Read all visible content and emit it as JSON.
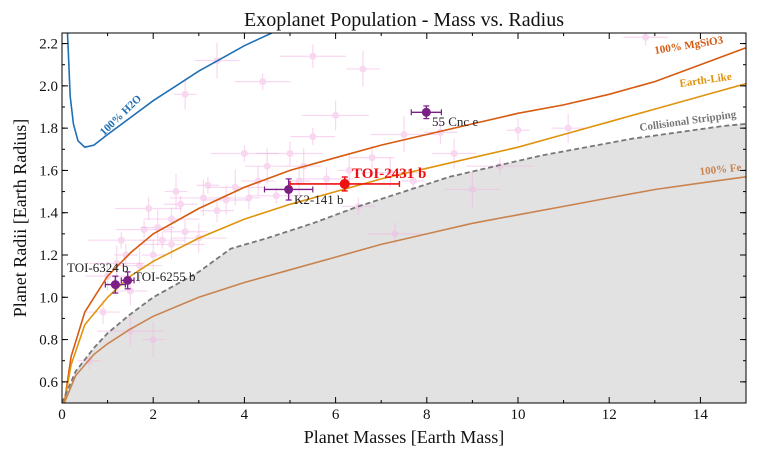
{
  "chart_data": {
    "type": "scatter",
    "title": "Exoplanet Population - Mass vs. Radius",
    "xlabel": "Planet Masses [Earth Mass]",
    "ylabel": "Planet Radii [Earth Radius]",
    "xlim": [
      0,
      15
    ],
    "ylim": [
      0.5,
      2.25
    ],
    "xticks": [
      0,
      2,
      4,
      6,
      8,
      10,
      12,
      14
    ],
    "yticks": [
      0.6,
      0.8,
      1.0,
      1.2,
      1.4,
      1.6,
      1.8,
      2.0,
      2.2
    ],
    "grid": false,
    "colors": {
      "background_population": "#f4b8e4",
      "highlight_planets": "#7a1f86",
      "toi2431": "#ee1111",
      "water": "#1f6fb4",
      "mgsio3": "#d65a10",
      "earth_like": "#e0930c",
      "iron": "#c9834f",
      "stripping": "#777777",
      "shading": "#e2e2e2"
    },
    "curves": [
      {
        "label": "100% H2O",
        "color": "#1f6fb4",
        "points": [
          [
            0.12,
            2.25
          ],
          [
            0.18,
            1.95
          ],
          [
            0.25,
            1.82
          ],
          [
            0.35,
            1.74
          ],
          [
            0.5,
            1.71
          ],
          [
            0.7,
            1.72
          ],
          [
            1.0,
            1.77
          ],
          [
            1.5,
            1.85
          ],
          [
            2.0,
            1.93
          ],
          [
            2.5,
            2.0
          ],
          [
            3.0,
            2.07
          ],
          [
            3.5,
            2.13
          ],
          [
            4.0,
            2.19
          ],
          [
            4.3,
            2.22
          ],
          [
            4.6,
            2.25
          ]
        ]
      },
      {
        "label": "100% MgSiO3",
        "color": "#d65a10",
        "points": [
          [
            0.05,
            0.5
          ],
          [
            0.2,
            0.72
          ],
          [
            0.5,
            0.93
          ],
          [
            1.0,
            1.1
          ],
          [
            1.5,
            1.21
          ],
          [
            2.0,
            1.3
          ],
          [
            3.0,
            1.42
          ],
          [
            4.0,
            1.52
          ],
          [
            5.0,
            1.6
          ],
          [
            6.0,
            1.66
          ],
          [
            7.0,
            1.72
          ],
          [
            8.0,
            1.77
          ],
          [
            9.0,
            1.82
          ],
          [
            10.0,
            1.87
          ],
          [
            11.0,
            1.91
          ],
          [
            12.0,
            1.96
          ],
          [
            13.0,
            2.02
          ],
          [
            14.0,
            2.1
          ],
          [
            15.0,
            2.18
          ]
        ]
      },
      {
        "label": "Earth-Like",
        "color": "#e0930c",
        "points": [
          [
            0.05,
            0.5
          ],
          [
            0.2,
            0.68
          ],
          [
            0.5,
            0.87
          ],
          [
            1.0,
            1.0
          ],
          [
            1.5,
            1.1
          ],
          [
            2.0,
            1.17
          ],
          [
            3.0,
            1.28
          ],
          [
            4.0,
            1.37
          ],
          [
            5.0,
            1.44
          ],
          [
            6.0,
            1.5
          ],
          [
            7.0,
            1.56
          ],
          [
            8.0,
            1.61
          ],
          [
            9.0,
            1.66
          ],
          [
            10.0,
            1.71
          ],
          [
            11.0,
            1.77
          ],
          [
            12.0,
            1.83
          ],
          [
            13.0,
            1.89
          ],
          [
            14.0,
            1.95
          ],
          [
            15.0,
            2.01
          ]
        ]
      },
      {
        "label": "Collisional Stripping",
        "color": "#777777",
        "dashed": true,
        "points": [
          [
            0.0,
            0.5
          ],
          [
            0.3,
            0.65
          ],
          [
            0.7,
            0.76
          ],
          [
            1.0,
            0.83
          ],
          [
            1.5,
            0.92
          ],
          [
            2.0,
            1.0
          ],
          [
            3.0,
            1.12
          ],
          [
            3.7,
            1.23
          ],
          [
            4.5,
            1.28
          ],
          [
            5.5,
            1.35
          ],
          [
            6.5,
            1.43
          ],
          [
            7.5,
            1.5
          ],
          [
            8.5,
            1.57
          ],
          [
            9.5,
            1.62
          ],
          [
            10.5,
            1.67
          ],
          [
            11.5,
            1.71
          ],
          [
            12.5,
            1.75
          ],
          [
            13.5,
            1.78
          ],
          [
            14.5,
            1.81
          ],
          [
            15.0,
            1.82
          ]
        ]
      },
      {
        "label": "100% Fe",
        "color": "#c9834f",
        "points": [
          [
            0.05,
            0.5
          ],
          [
            0.3,
            0.63
          ],
          [
            0.7,
            0.73
          ],
          [
            1.0,
            0.78
          ],
          [
            1.5,
            0.85
          ],
          [
            2.0,
            0.91
          ],
          [
            3.0,
            1.0
          ],
          [
            4.0,
            1.07
          ],
          [
            5.0,
            1.13
          ],
          [
            6.0,
            1.19
          ],
          [
            7.0,
            1.25
          ],
          [
            8.0,
            1.3
          ],
          [
            9.0,
            1.35
          ],
          [
            10.0,
            1.39
          ],
          [
            11.0,
            1.43
          ],
          [
            12.0,
            1.47
          ],
          [
            13.0,
            1.51
          ],
          [
            14.0,
            1.54
          ],
          [
            15.0,
            1.57
          ]
        ]
      }
    ],
    "curve_labels": [
      "100% H2O",
      "100% MgSiO3",
      "Earth-Like",
      "Collisional Stripping",
      "100% Fe"
    ],
    "population": [
      [
        0.6,
        0.7
      ],
      [
        0.9,
        0.93
      ],
      [
        1.0,
        1.1
      ],
      [
        1.2,
        1.16
      ],
      [
        1.3,
        1.27
      ],
      [
        1.4,
        1.2
      ],
      [
        1.5,
        1.03
      ],
      [
        1.7,
        1.15
      ],
      [
        1.8,
        1.32
      ],
      [
        1.9,
        1.42
      ],
      [
        2.0,
        1.2
      ],
      [
        2.1,
        1.33
      ],
      [
        2.2,
        1.27
      ],
      [
        2.4,
        1.37
      ],
      [
        2.4,
        1.25
      ],
      [
        2.5,
        1.5
      ],
      [
        2.6,
        1.44
      ],
      [
        2.7,
        1.31
      ],
      [
        3.0,
        1.28
      ],
      [
        3.1,
        1.47
      ],
      [
        3.2,
        1.53
      ],
      [
        3.4,
        1.41
      ],
      [
        3.6,
        1.46
      ],
      [
        3.8,
        1.52
      ],
      [
        4.0,
        1.68
      ],
      [
        4.1,
        1.47
      ],
      [
        4.3,
        1.55
      ],
      [
        4.5,
        1.62
      ],
      [
        4.7,
        1.48
      ],
      [
        5.0,
        1.68
      ],
      [
        5.2,
        1.55
      ],
      [
        5.3,
        1.62
      ],
      [
        5.5,
        1.76
      ],
      [
        5.8,
        1.56
      ],
      [
        6.0,
        1.86
      ],
      [
        6.3,
        1.6
      ],
      [
        6.5,
        1.43
      ],
      [
        6.8,
        1.66
      ],
      [
        7.2,
        1.59
      ],
      [
        7.5,
        1.77
      ],
      [
        7.7,
        1.55
      ],
      [
        8.3,
        1.78
      ],
      [
        8.6,
        1.68
      ],
      [
        9.0,
        1.51
      ],
      [
        9.6,
        1.62
      ],
      [
        10.0,
        1.79
      ],
      [
        11.1,
        1.8
      ],
      [
        3.4,
        2.12
      ],
      [
        4.4,
        2.02
      ],
      [
        5.5,
        2.14
      ],
      [
        2.7,
        1.96
      ],
      [
        6.6,
        2.08
      ],
      [
        12.8,
        2.23
      ],
      [
        7.3,
        1.3
      ],
      [
        1.5,
        0.84
      ],
      [
        2.0,
        0.8
      ]
    ],
    "highlight_planets": [
      {
        "name": "TOI-6324 b",
        "x": 1.17,
        "y": 1.06,
        "xerr": 0.22,
        "yerr": 0.04
      },
      {
        "name": "TOI-6255 b",
        "x": 1.44,
        "y": 1.08,
        "xerr": 0.14,
        "yerr": 0.04
      },
      {
        "name": "K2-141 b",
        "x": 4.97,
        "y": 1.51,
        "xerr": 0.53,
        "yerr": 0.05
      },
      {
        "name": "55 Cnc e",
        "x": 7.99,
        "y": 1.875,
        "xerr": 0.33,
        "yerr": 0.03
      }
    ],
    "featured_planet": {
      "name": "TOI-2431 b",
      "x": 6.2,
      "y": 1.536,
      "xerr": 1.2,
      "yerr": 0.033
    }
  }
}
